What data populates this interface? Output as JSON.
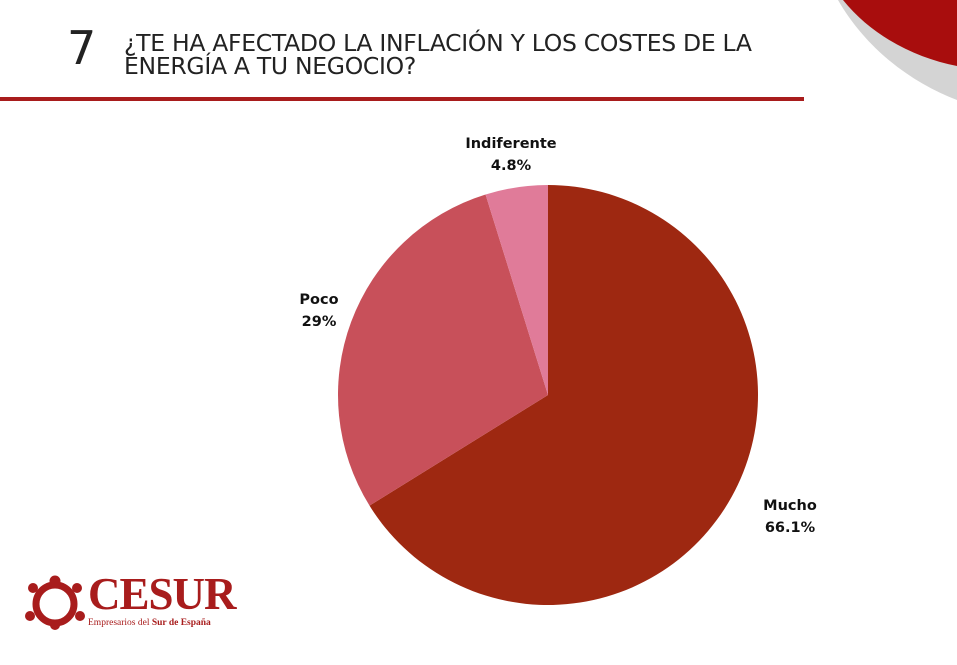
{
  "question": {
    "number": "7",
    "title": "¿TE HA AFECTADO LA INFLACIÓN Y LOS COSTES DE LA ENERGÍA A TU NEGOCIO?"
  },
  "brand": {
    "name": "CESUR",
    "tagline_plain": "Empresarios del ",
    "tagline_bold": "Sur de España",
    "color": "#a81c1c"
  },
  "chart_data": {
    "type": "pie",
    "title": "",
    "slices": [
      {
        "label": "Mucho",
        "value": 66.1,
        "display": "66.1%",
        "color": "#9e2811"
      },
      {
        "label": "Poco",
        "value": 29,
        "display": "29%",
        "color": "#c8505a"
      },
      {
        "label": "Indiferente",
        "value": 4.8,
        "display": "4.8%",
        "color": "#e07b99"
      }
    ],
    "start_angle": "12 o'clock",
    "direction": "clockwise",
    "legend": "none",
    "labels": "outside"
  }
}
